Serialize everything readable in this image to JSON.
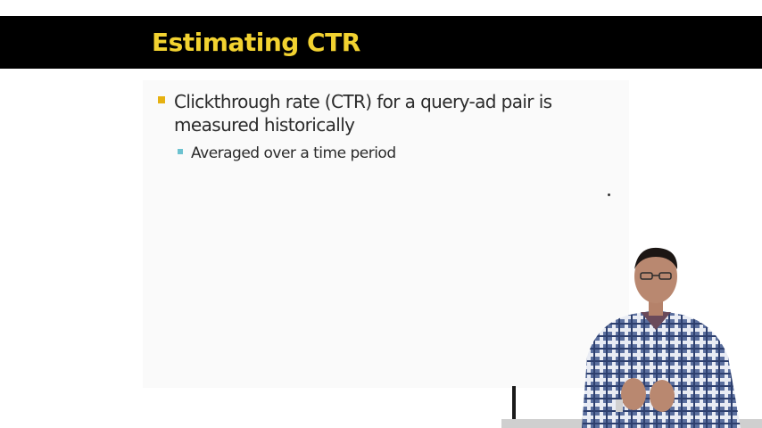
{
  "slide": {
    "title": "Estimating CTR",
    "bullets": [
      {
        "text": "Clickthrough rate (CTR) for a query-ad pair is measured historically",
        "sub_bullets": [
          {
            "text": "Averaged over a time period"
          }
        ]
      }
    ]
  },
  "colors": {
    "title_bar": "#000000",
    "title_text": "#f2d230",
    "bullet_l1": "#e6b111",
    "bullet_l2": "#6cc2d0",
    "body_text": "#2b2b2b"
  },
  "icons": {
    "laser_pointer": "laser-pointer-dot",
    "presenter": "presenter-figure"
  }
}
